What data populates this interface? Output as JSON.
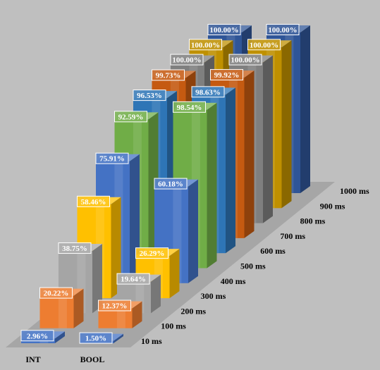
{
  "chart_data": {
    "type": "bar",
    "title": "",
    "xlabel": "",
    "ylabel": "",
    "ylim": [
      0,
      100
    ],
    "categories": [
      "INT",
      "BOOL"
    ],
    "series": [
      {
        "name": "10 ms",
        "color": "#4472c4",
        "values": [
          2.96,
          1.5
        ],
        "labels": [
          "2.96%",
          "1.50%"
        ]
      },
      {
        "name": "100 ms",
        "color": "#ed7d31",
        "values": [
          20.22,
          12.37
        ],
        "labels": [
          "20.22%",
          "12.37%"
        ]
      },
      {
        "name": "200 ms",
        "color": "#a5a5a5",
        "values": [
          38.75,
          19.64
        ],
        "labels": [
          "38.75%",
          "19.64%"
        ]
      },
      {
        "name": "300 ms",
        "color": "#ffc000",
        "values": [
          58.46,
          26.29
        ],
        "labels": [
          "58.46%",
          "26.29%"
        ]
      },
      {
        "name": "400 ms",
        "color": "#4472c4",
        "values": [
          75.91,
          60.18
        ],
        "labels": [
          "75.91%",
          "60.18%"
        ]
      },
      {
        "name": "500 ms",
        "color": "#70ad47",
        "values": [
          92.59,
          98.54
        ],
        "labels": [
          "92.59%",
          "98.54%"
        ]
      },
      {
        "name": "600 ms",
        "color": "#2e75b6",
        "values": [
          96.53,
          98.63
        ],
        "labels": [
          "96.53%",
          "98.63%"
        ]
      },
      {
        "name": "700 ms",
        "color": "#c55a11",
        "values": [
          99.73,
          99.92
        ],
        "labels": [
          "99.73%",
          "99.92%"
        ]
      },
      {
        "name": "800 ms",
        "color": "#7f7f7f",
        "values": [
          100.0,
          100.0
        ],
        "labels": [
          "100.00%",
          "100.00%"
        ]
      },
      {
        "name": "900 ms",
        "color": "#bf9000",
        "values": [
          100.0,
          100.0
        ],
        "labels": [
          "100.00%",
          "100.00%"
        ]
      },
      {
        "name": "1000 ms",
        "color": "#2f5597",
        "values": [
          100.0,
          100.0
        ],
        "labels": [
          "100.00%",
          "100.00%"
        ]
      }
    ],
    "grid": false,
    "legend": "none"
  }
}
